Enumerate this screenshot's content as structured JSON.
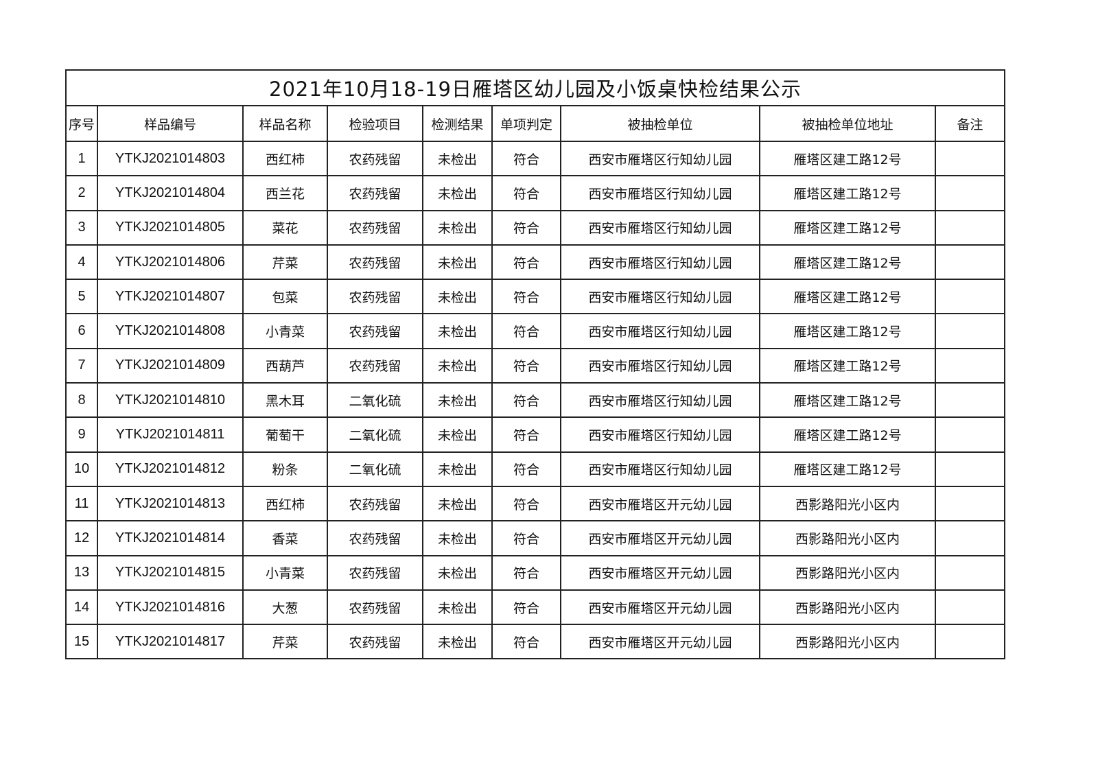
{
  "title": "2021年10月18-19日雁塔区幼儿园及小饭桌快检结果公示",
  "columns": [
    "序号",
    "样品编号",
    "样品名称",
    "检验项目",
    "检测结果",
    "单项判定",
    "被抽检单位",
    "被抽检单位地址",
    "备注"
  ],
  "rows": [
    [
      "1",
      "YTKJ2021014803",
      "西红柿",
      "农药残留",
      "未检出",
      "符合",
      "西安市雁塔区行知幼儿园",
      "雁塔区建工路12号",
      ""
    ],
    [
      "2",
      "YTKJ2021014804",
      "西兰花",
      "农药残留",
      "未检出",
      "符合",
      "西安市雁塔区行知幼儿园",
      "雁塔区建工路12号",
      ""
    ],
    [
      "3",
      "YTKJ2021014805",
      "菜花",
      "农药残留",
      "未检出",
      "符合",
      "西安市雁塔区行知幼儿园",
      "雁塔区建工路12号",
      ""
    ],
    [
      "4",
      "YTKJ2021014806",
      "芹菜",
      "农药残留",
      "未检出",
      "符合",
      "西安市雁塔区行知幼儿园",
      "雁塔区建工路12号",
      ""
    ],
    [
      "5",
      "YTKJ2021014807",
      "包菜",
      "农药残留",
      "未检出",
      "符合",
      "西安市雁塔区行知幼儿园",
      "雁塔区建工路12号",
      ""
    ],
    [
      "6",
      "YTKJ2021014808",
      "小青菜",
      "农药残留",
      "未检出",
      "符合",
      "西安市雁塔区行知幼儿园",
      "雁塔区建工路12号",
      ""
    ],
    [
      "7",
      "YTKJ2021014809",
      "西葫芦",
      "农药残留",
      "未检出",
      "符合",
      "西安市雁塔区行知幼儿园",
      "雁塔区建工路12号",
      ""
    ],
    [
      "8",
      "YTKJ2021014810",
      "黑木耳",
      "二氧化硫",
      "未检出",
      "符合",
      "西安市雁塔区行知幼儿园",
      "雁塔区建工路12号",
      ""
    ],
    [
      "9",
      "YTKJ2021014811",
      "葡萄干",
      "二氧化硫",
      "未检出",
      "符合",
      "西安市雁塔区行知幼儿园",
      "雁塔区建工路12号",
      ""
    ],
    [
      "10",
      "YTKJ2021014812",
      "粉条",
      "二氧化硫",
      "未检出",
      "符合",
      "西安市雁塔区行知幼儿园",
      "雁塔区建工路12号",
      ""
    ],
    [
      "11",
      "YTKJ2021014813",
      "西红柿",
      "农药残留",
      "未检出",
      "符合",
      "西安市雁塔区开元幼儿园",
      "西影路阳光小区内",
      ""
    ],
    [
      "12",
      "YTKJ2021014814",
      "香菜",
      "农药残留",
      "未检出",
      "符合",
      "西安市雁塔区开元幼儿园",
      "西影路阳光小区内",
      ""
    ],
    [
      "13",
      "YTKJ2021014815",
      "小青菜",
      "农药残留",
      "未检出",
      "符合",
      "西安市雁塔区开元幼儿园",
      "西影路阳光小区内",
      ""
    ],
    [
      "14",
      "YTKJ2021014816",
      "大葱",
      "农药残留",
      "未检出",
      "符合",
      "西安市雁塔区开元幼儿园",
      "西影路阳光小区内",
      ""
    ],
    [
      "15",
      "YTKJ2021014817",
      "芹菜",
      "农药残留",
      "未检出",
      "符合",
      "西安市雁塔区开元幼儿园",
      "西影路阳光小区内",
      ""
    ]
  ]
}
